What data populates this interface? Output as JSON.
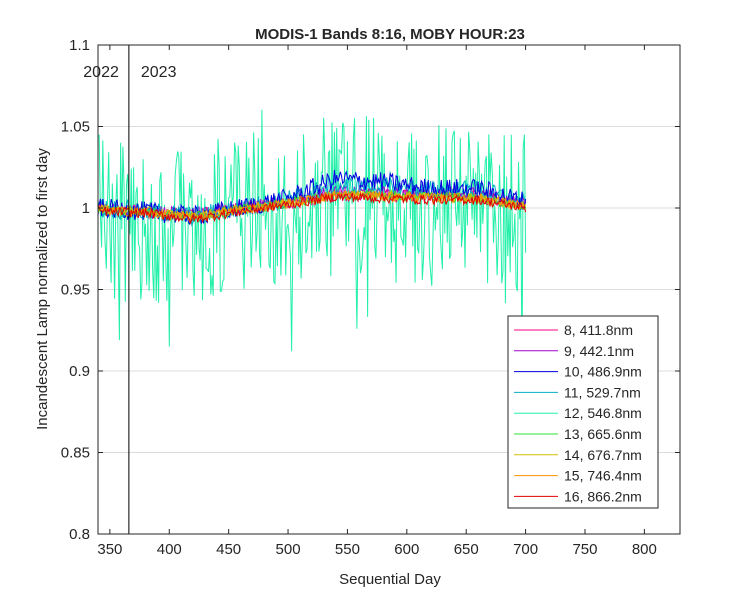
{
  "chart_data": {
    "type": "line",
    "title": "MODIS-1 Bands 8:16, MOBY HOUR:23",
    "xlabel": "Sequential Day",
    "ylabel": "Incandescent Lamp normalized to first day",
    "xlim": [
      340,
      830
    ],
    "ylim": [
      0.8,
      1.1
    ],
    "xticks": [
      350,
      400,
      450,
      500,
      550,
      600,
      650,
      700,
      750,
      800
    ],
    "yticks": [
      0.8,
      0.85,
      0.9,
      0.95,
      1,
      1.05,
      1.1
    ],
    "grid": "horizontal",
    "legend_position": "lower-right inside",
    "year_marker": {
      "x": 366,
      "left_label": "2022",
      "right_label": "2023"
    },
    "series": [
      {
        "name": "8, 411.8nm",
        "color": "#ff0080",
        "amp": 0.004,
        "x": [
          340,
          380,
          420,
          460,
          500,
          540,
          580,
          620,
          660,
          700
        ],
        "values": [
          1.0,
          0.998,
          0.996,
          1.0,
          1.003,
          1.008,
          1.008,
          1.007,
          1.007,
          1.002
        ]
      },
      {
        "name": "9, 442.1nm",
        "color": "#a000d0",
        "amp": 0.004,
        "x": [
          340,
          380,
          420,
          460,
          500,
          540,
          580,
          620,
          660,
          700
        ],
        "values": [
          1.0,
          0.998,
          0.996,
          1.0,
          1.004,
          1.01,
          1.01,
          1.009,
          1.009,
          1.003
        ]
      },
      {
        "name": "10, 486.9nm",
        "color": "#0000e0",
        "amp": 0.006,
        "x": [
          340,
          380,
          420,
          460,
          500,
          540,
          580,
          620,
          660,
          700
        ],
        "values": [
          1.0,
          0.998,
          0.995,
          1.0,
          1.006,
          1.018,
          1.016,
          1.012,
          1.012,
          1.004
        ]
      },
      {
        "name": "11, 529.7nm",
        "color": "#00b0c8",
        "amp": 0.006,
        "x": [
          340,
          380,
          420,
          460,
          500,
          540,
          580,
          620,
          660,
          700
        ],
        "values": [
          1.0,
          0.998,
          0.995,
          1.0,
          1.005,
          1.014,
          1.013,
          1.011,
          1.011,
          1.003
        ]
      },
      {
        "name": "12, 546.8nm",
        "color": "#20f0a8",
        "amp": 0.05,
        "x": [
          340,
          380,
          420,
          460,
          500,
          540,
          580,
          620,
          660,
          700
        ],
        "values": [
          0.995,
          0.99,
          0.99,
          0.995,
          1.0,
          1.01,
          1.005,
          1.0,
          1.005,
          0.995
        ]
      },
      {
        "name": "13, 665.6nm",
        "color": "#30e030",
        "amp": 0.003,
        "x": [
          340,
          380,
          420,
          460,
          500,
          540,
          580,
          620,
          660,
          700
        ],
        "values": [
          0.999,
          0.998,
          0.995,
          0.999,
          1.003,
          1.008,
          1.008,
          1.007,
          1.006,
          1.001
        ]
      },
      {
        "name": "14, 676.7nm",
        "color": "#d0c000",
        "amp": 0.003,
        "x": [
          340,
          380,
          420,
          460,
          500,
          540,
          580,
          620,
          660,
          700
        ],
        "values": [
          0.999,
          0.998,
          0.995,
          0.999,
          1.003,
          1.008,
          1.008,
          1.007,
          1.006,
          1.001
        ]
      },
      {
        "name": "15, 746.4nm",
        "color": "#ff9000",
        "amp": 0.003,
        "x": [
          340,
          380,
          420,
          460,
          500,
          540,
          580,
          620,
          660,
          700
        ],
        "values": [
          0.999,
          0.997,
          0.994,
          0.999,
          1.003,
          1.008,
          1.007,
          1.006,
          1.006,
          1.001
        ]
      },
      {
        "name": "16, 866.2nm",
        "color": "#e00000",
        "amp": 0.003,
        "x": [
          340,
          380,
          420,
          460,
          500,
          540,
          580,
          620,
          660,
          700
        ],
        "values": [
          0.998,
          0.997,
          0.993,
          0.998,
          1.002,
          1.007,
          1.006,
          1.005,
          1.005,
          1.0
        ]
      }
    ]
  }
}
